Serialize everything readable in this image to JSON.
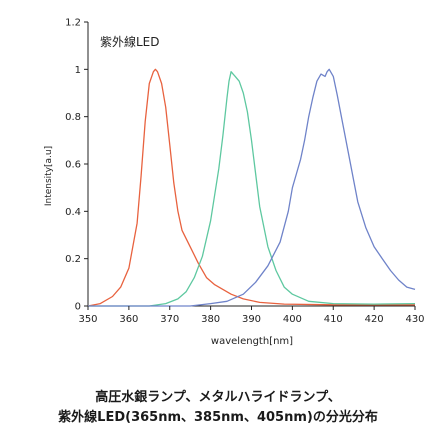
{
  "caption": {
    "line1": "高圧水銀ランプ、メタルハライドランプ、",
    "line2": "紫外線LED(365nm、385nm、405nm)の分光分布"
  },
  "chart_data": {
    "type": "line",
    "annotation": "紫外線LED",
    "xlabel": "wavelength[nm]",
    "ylabel": "Intensity[a.u]",
    "xlim": [
      350,
      430
    ],
    "ylim": [
      0,
      1.2
    ],
    "x_ticks": [
      350,
      360,
      370,
      380,
      390,
      400,
      410,
      420,
      430
    ],
    "y_ticks": [
      0,
      0.2,
      0.4,
      0.6,
      0.8,
      1,
      1.2
    ],
    "grid": false,
    "series": [
      {
        "color": "#e8623f",
        "points": [
          [
            350,
            0
          ],
          [
            353,
            0.01
          ],
          [
            356,
            0.04
          ],
          [
            358,
            0.08
          ],
          [
            360,
            0.16
          ],
          [
            362,
            0.35
          ],
          [
            363,
            0.55
          ],
          [
            364,
            0.78
          ],
          [
            365,
            0.94
          ],
          [
            366,
            0.99
          ],
          [
            366.5,
            1.0
          ],
          [
            367,
            0.99
          ],
          [
            368,
            0.94
          ],
          [
            369,
            0.84
          ],
          [
            370,
            0.68
          ],
          [
            371,
            0.52
          ],
          [
            372,
            0.4
          ],
          [
            373,
            0.32
          ],
          [
            375,
            0.25
          ],
          [
            377,
            0.18
          ],
          [
            379,
            0.12
          ],
          [
            381,
            0.09
          ],
          [
            383,
            0.07
          ],
          [
            385,
            0.05
          ],
          [
            388,
            0.03
          ],
          [
            392,
            0.015
          ],
          [
            398,
            0.008
          ],
          [
            410,
            0.005
          ],
          [
            430,
            0.005
          ]
        ]
      },
      {
        "color": "#5ec8a0",
        "points": [
          [
            350,
            0
          ],
          [
            365,
            0
          ],
          [
            369,
            0.01
          ],
          [
            372,
            0.03
          ],
          [
            374,
            0.06
          ],
          [
            376,
            0.12
          ],
          [
            378,
            0.21
          ],
          [
            380,
            0.36
          ],
          [
            382,
            0.58
          ],
          [
            383,
            0.72
          ],
          [
            384,
            0.88
          ],
          [
            384.5,
            0.95
          ],
          [
            385,
            0.99
          ],
          [
            385.5,
            0.98
          ],
          [
            386,
            0.97
          ],
          [
            387,
            0.95
          ],
          [
            388,
            0.9
          ],
          [
            389,
            0.82
          ],
          [
            390,
            0.7
          ],
          [
            391,
            0.56
          ],
          [
            392,
            0.42
          ],
          [
            394,
            0.25
          ],
          [
            396,
            0.15
          ],
          [
            398,
            0.08
          ],
          [
            400,
            0.05
          ],
          [
            404,
            0.02
          ],
          [
            410,
            0.01
          ],
          [
            420,
            0.008
          ],
          [
            430,
            0.01
          ]
        ]
      },
      {
        "color": "#6f83c9",
        "points": [
          [
            350,
            0
          ],
          [
            375,
            0
          ],
          [
            380,
            0.01
          ],
          [
            384,
            0.02
          ],
          [
            388,
            0.05
          ],
          [
            391,
            0.1
          ],
          [
            394,
            0.17
          ],
          [
            397,
            0.27
          ],
          [
            399,
            0.4
          ],
          [
            400,
            0.5
          ],
          [
            401,
            0.56
          ],
          [
            402,
            0.62
          ],
          [
            403,
            0.7
          ],
          [
            404,
            0.8
          ],
          [
            405,
            0.88
          ],
          [
            406,
            0.95
          ],
          [
            407,
            0.98
          ],
          [
            408,
            0.97
          ],
          [
            408.5,
            0.99
          ],
          [
            409,
            1.0
          ],
          [
            410,
            0.97
          ],
          [
            411,
            0.89
          ],
          [
            412,
            0.8
          ],
          [
            413,
            0.71
          ],
          [
            414,
            0.62
          ],
          [
            415,
            0.53
          ],
          [
            416,
            0.44
          ],
          [
            418,
            0.33
          ],
          [
            420,
            0.25
          ],
          [
            422,
            0.2
          ],
          [
            424,
            0.15
          ],
          [
            426,
            0.11
          ],
          [
            428,
            0.08
          ],
          [
            430,
            0.07
          ]
        ]
      }
    ]
  }
}
